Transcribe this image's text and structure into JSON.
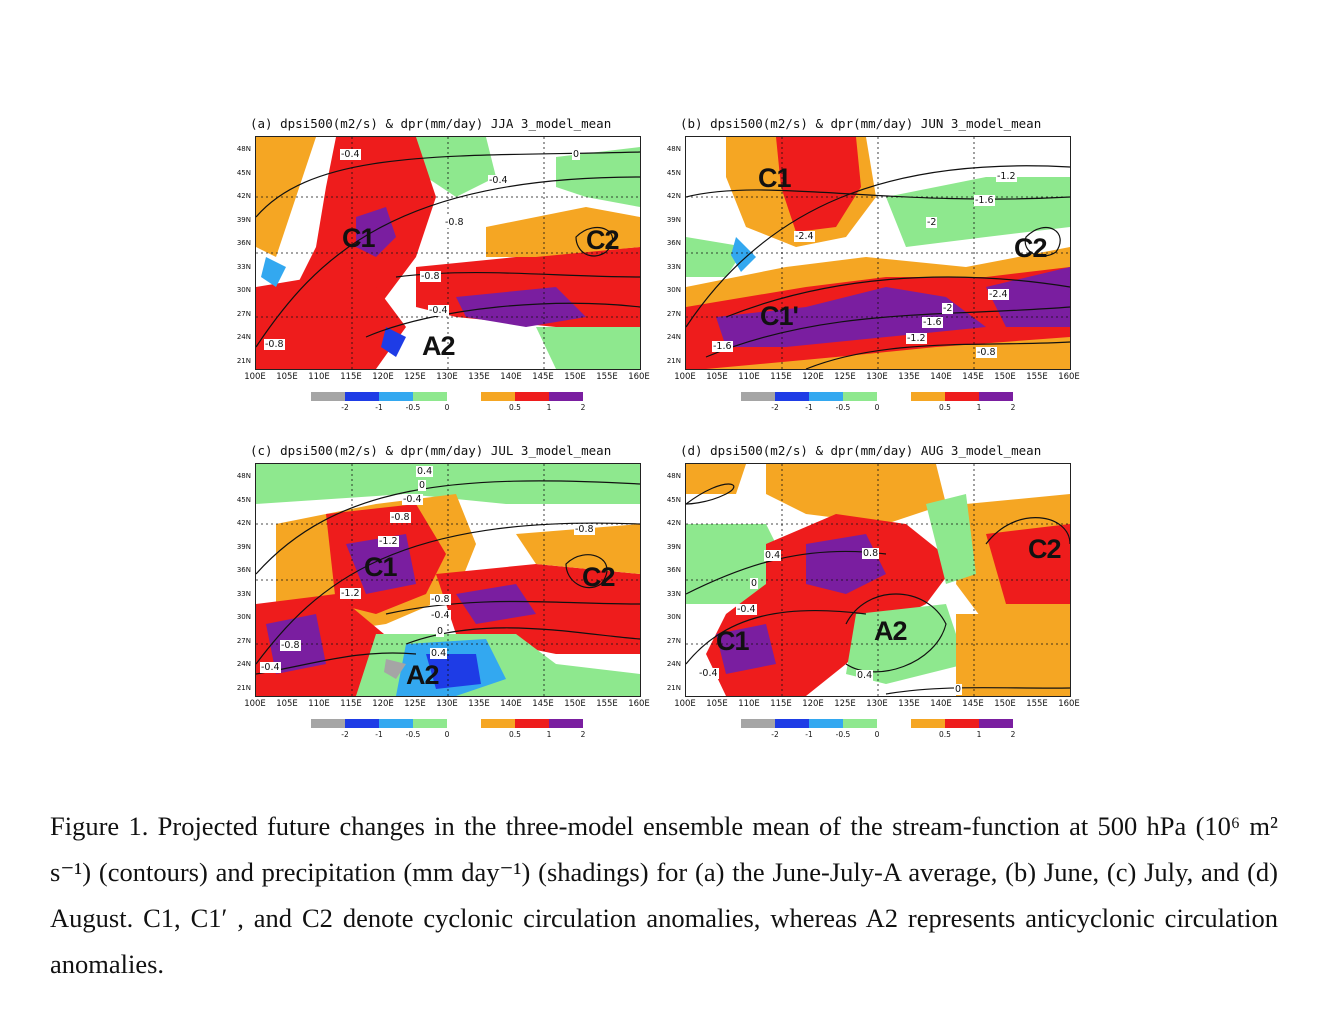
{
  "panels": [
    {
      "title": "(a) dpsi500(m2/s) & dpr(mm/day) JJA 3_model_mean",
      "regions": [
        "C1",
        "C2",
        "A2"
      ],
      "contour_labels": [
        "-0.4",
        "0",
        "-0.4",
        "-0.8",
        "-0.8",
        "-0.4",
        "-0.8"
      ]
    },
    {
      "title": "(b) dpsi500(m2/s) & dpr(mm/day) JUN 3_model_mean",
      "regions": [
        "C1",
        "C2",
        "C1'"
      ],
      "contour_labels": [
        "-1.2",
        "-1.6",
        "-2",
        "-2.4",
        "-2.4",
        "-2",
        "-1.6",
        "-1.2",
        "-0.8",
        "-1.6"
      ]
    },
    {
      "title": "(c) dpsi500(m2/s) & dpr(mm/day) JUL 3_model_mean",
      "regions": [
        "C1",
        "C2",
        "A2"
      ],
      "contour_labels": [
        "0.4",
        "0",
        "-0.4",
        "-0.8",
        "-1.2",
        "-0.8",
        "-1.2",
        "-0.8",
        "-0.4",
        "0",
        "0.4",
        "-0.8",
        "-0.4"
      ]
    },
    {
      "title": "(d) dpsi500(m2/s) & dpr(mm/day) AUG 3_model_mean",
      "regions": [
        "C2",
        "C1",
        "A2"
      ],
      "contour_labels": [
        "0.4",
        "0.8",
        "0",
        "-0.4",
        "-0.4",
        "0.4",
        "0"
      ]
    }
  ],
  "y_ticks": [
    "48N",
    "45N",
    "42N",
    "39N",
    "36N",
    "33N",
    "30N",
    "27N",
    "24N",
    "21N"
  ],
  "x_ticks": [
    "100E",
    "105E",
    "110E",
    "115E",
    "120E",
    "125E",
    "130E",
    "135E",
    "140E",
    "145E",
    "150E",
    "155E",
    "160E"
  ],
  "colorbar": {
    "labels": [
      "-2",
      "-1",
      "-0.5",
      "0",
      "0.5",
      "1",
      "2"
    ],
    "colors": [
      "#a5a5a5",
      "#1e3ce6",
      "#33a8f0",
      "#8ee88e",
      "#f5a623",
      "#ee1c1c",
      "#7a1ea0"
    ]
  },
  "caption": "Figure 1. Projected future changes in the three-model ensemble mean of the stream-function at 500 hPa (10⁶ m² s⁻¹) (contours) and precipitation (mm day⁻¹) (shadings) for (a) the June-July-A average, (b) June, (c) July, and (d) August. C1, C1′ , and C2 denote cyclonic circulation anomalies, whereas A2 represents anticyclonic circulation anomalies."
}
